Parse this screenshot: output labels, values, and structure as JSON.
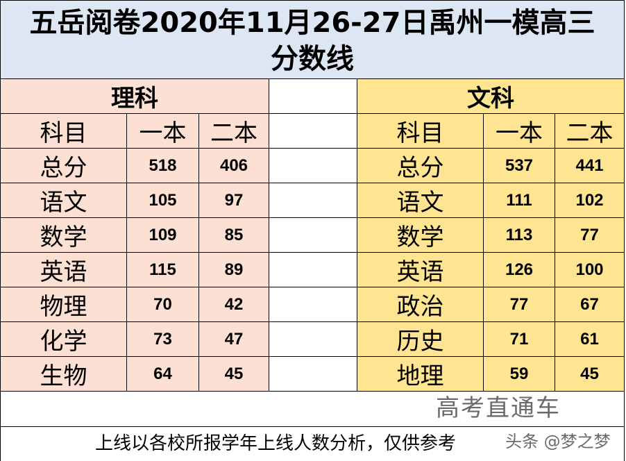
{
  "title": {
    "line1": "五岳阅卷2020年11月26-27日禹州一模高三",
    "line2": "分数线"
  },
  "science": {
    "header": "理科",
    "col_subject": "科目",
    "col_first": "一本",
    "col_second": "二本",
    "rows": [
      {
        "subject": "总分",
        "first": "518",
        "second": "406"
      },
      {
        "subject": "语文",
        "first": "105",
        "second": "97"
      },
      {
        "subject": "数学",
        "first": "109",
        "second": "85"
      },
      {
        "subject": "英语",
        "first": "115",
        "second": "89"
      },
      {
        "subject": "物理",
        "first": "70",
        "second": "42"
      },
      {
        "subject": "化学",
        "first": "73",
        "second": "47"
      },
      {
        "subject": "生物",
        "first": "64",
        "second": "45"
      }
    ]
  },
  "arts": {
    "header": "文科",
    "col_subject": "科目",
    "col_first": "一本",
    "col_second": "二本",
    "rows": [
      {
        "subject": "总分",
        "first": "537",
        "second": "441"
      },
      {
        "subject": "语文",
        "first": "111",
        "second": "102"
      },
      {
        "subject": "数学",
        "first": "113",
        "second": "77"
      },
      {
        "subject": "英语",
        "first": "126",
        "second": "100"
      },
      {
        "subject": "政治",
        "first": "77",
        "second": "67"
      },
      {
        "subject": "历史",
        "first": "71",
        "second": "61"
      },
      {
        "subject": "地理",
        "first": "59",
        "second": "45"
      }
    ]
  },
  "footer": "上线以各校所报学年上线人数分析，仅供参考",
  "watermark": {
    "line1": "高考直通车",
    "line2": "头条 @梦之梦"
  },
  "colors": {
    "title_bg": "#dde7f3",
    "science_bg": "#fbe0d3",
    "arts_bg": "#ffe491"
  }
}
